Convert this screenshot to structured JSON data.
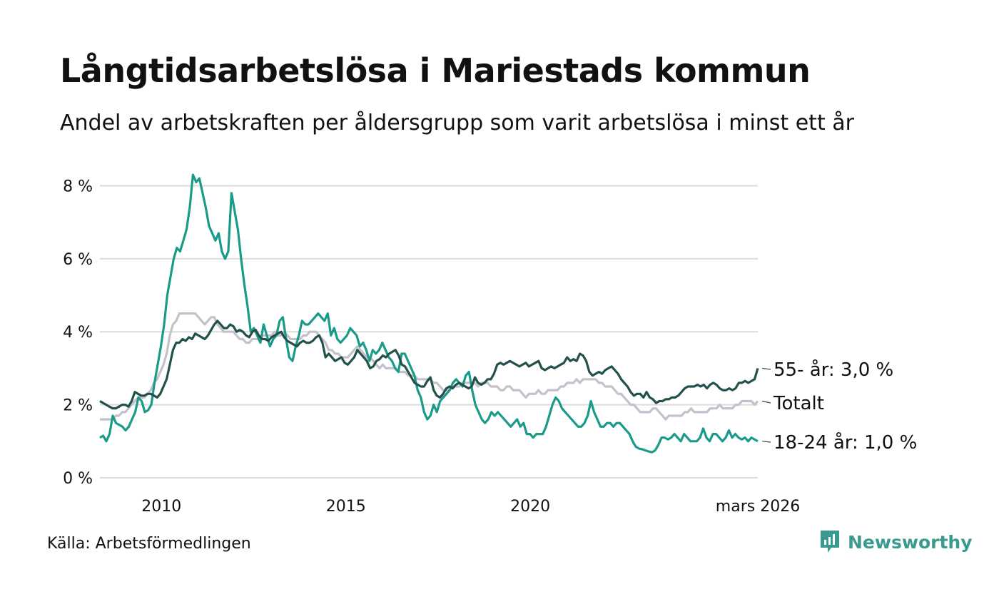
{
  "title": "Långtidsarbetslösa i Mariestads kommun",
  "subtitle": "Andel av arbetskraften per åldersgrupp som varit arbetslösa i minst ett år",
  "source": "Källa: Arbetsförmedlingen",
  "brand": "Newsworthy",
  "chart_data": {
    "type": "line",
    "x_start": 2008.33,
    "x_step": 0.0833,
    "xlim": [
      2008.33,
      2026.17
    ],
    "ylim": [
      0,
      8.4
    ],
    "y_ticks": [
      0,
      2,
      4,
      6,
      8
    ],
    "y_tick_labels": [
      "0 %",
      "2 %",
      "4 %",
      "6 %",
      "8 %"
    ],
    "x_ticks": [
      2010,
      2015,
      2020,
      2026.17
    ],
    "x_tick_labels": [
      "2010",
      "2015",
      "2020",
      "mars 2026"
    ],
    "grid": true,
    "series": [
      {
        "name": "Totalt",
        "label": "Totalt",
        "color": "#c4c0cc",
        "values": [
          1.6,
          1.6,
          1.6,
          1.6,
          1.6,
          1.7,
          1.7,
          1.8,
          1.8,
          1.9,
          2.0,
          2.1,
          2.2,
          2.2,
          2.2,
          2.3,
          2.4,
          2.6,
          2.7,
          2.9,
          3.1,
          3.4,
          3.9,
          4.2,
          4.3,
          4.5,
          4.5,
          4.5,
          4.5,
          4.5,
          4.5,
          4.4,
          4.3,
          4.2,
          4.3,
          4.4,
          4.4,
          4.2,
          4.1,
          4.0,
          4.0,
          4.0,
          4.0,
          3.9,
          3.8,
          3.8,
          3.7,
          3.7,
          3.8,
          3.8,
          3.8,
          3.9,
          3.9,
          3.9,
          3.9,
          4.0,
          3.9,
          3.9,
          4.0,
          3.9,
          3.8,
          3.8,
          3.8,
          3.8,
          3.9,
          3.9,
          4.0,
          4.0,
          4.0,
          3.9,
          3.8,
          3.7,
          3.5,
          3.5,
          3.4,
          3.4,
          3.3,
          3.3,
          3.3,
          3.4,
          3.5,
          3.6,
          3.5,
          3.4,
          3.3,
          3.3,
          3.2,
          3.1,
          3.0,
          3.1,
          3.0,
          3.0,
          3.0,
          3.0,
          2.9,
          2.9,
          2.9,
          2.8,
          2.8,
          2.8,
          2.7,
          2.7,
          2.7,
          2.7,
          2.7,
          2.6,
          2.6,
          2.5,
          2.4,
          2.4,
          2.4,
          2.5,
          2.5,
          2.5,
          2.6,
          2.6,
          2.6,
          2.6,
          2.6,
          2.5,
          2.6,
          2.6,
          2.6,
          2.5,
          2.5,
          2.5,
          2.4,
          2.4,
          2.5,
          2.5,
          2.4,
          2.4,
          2.4,
          2.3,
          2.2,
          2.3,
          2.3,
          2.3,
          2.4,
          2.3,
          2.3,
          2.4,
          2.4,
          2.4,
          2.4,
          2.5,
          2.5,
          2.6,
          2.6,
          2.6,
          2.7,
          2.6,
          2.7,
          2.7,
          2.7,
          2.7,
          2.7,
          2.6,
          2.6,
          2.5,
          2.5,
          2.5,
          2.4,
          2.3,
          2.3,
          2.2,
          2.1,
          2.0,
          2.0,
          1.9,
          1.8,
          1.8,
          1.8,
          1.8,
          1.9,
          1.9,
          1.8,
          1.7,
          1.6,
          1.7,
          1.7,
          1.7,
          1.7,
          1.7,
          1.8,
          1.8,
          1.9,
          1.8,
          1.8,
          1.8,
          1.8,
          1.8,
          1.9,
          1.9,
          1.9,
          2.0,
          1.9,
          1.9,
          1.9,
          1.9,
          2.0,
          2.0,
          2.1,
          2.1,
          2.1,
          2.1,
          2.0,
          2.1
        ]
      },
      {
        "name": "18-24 år",
        "label": "18-24 år: 1,0 %",
        "color": "#1a9a89",
        "values": [
          1.1,
          1.15,
          1.0,
          1.2,
          1.7,
          1.5,
          1.45,
          1.4,
          1.3,
          1.4,
          1.6,
          1.8,
          2.2,
          2.1,
          1.8,
          1.85,
          2.0,
          2.6,
          3.1,
          3.6,
          4.2,
          5.0,
          5.5,
          6.0,
          6.3,
          6.2,
          6.5,
          6.8,
          7.4,
          8.3,
          8.1,
          8.2,
          7.8,
          7.4,
          6.9,
          6.7,
          6.5,
          6.7,
          6.2,
          6.0,
          6.2,
          7.8,
          7.3,
          6.8,
          6.0,
          5.3,
          4.7,
          4.0,
          4.1,
          3.9,
          3.7,
          4.2,
          3.9,
          3.6,
          3.8,
          3.9,
          4.3,
          4.4,
          3.8,
          3.3,
          3.2,
          3.6,
          3.9,
          4.3,
          4.2,
          4.2,
          4.3,
          4.4,
          4.5,
          4.4,
          4.3,
          4.5,
          3.9,
          4.1,
          3.8,
          3.7,
          3.8,
          3.9,
          4.1,
          4.0,
          3.9,
          3.6,
          3.7,
          3.5,
          3.2,
          3.5,
          3.4,
          3.5,
          3.7,
          3.5,
          3.3,
          3.2,
          3.0,
          2.9,
          3.4,
          3.4,
          3.2,
          3.0,
          2.8,
          2.4,
          2.2,
          1.8,
          1.6,
          1.7,
          2.0,
          1.8,
          2.1,
          2.2,
          2.3,
          2.4,
          2.6,
          2.7,
          2.6,
          2.5,
          2.8,
          2.9,
          2.4,
          2.0,
          1.8,
          1.6,
          1.5,
          1.6,
          1.8,
          1.7,
          1.8,
          1.7,
          1.6,
          1.5,
          1.4,
          1.5,
          1.6,
          1.4,
          1.5,
          1.2,
          1.2,
          1.1,
          1.2,
          1.2,
          1.2,
          1.4,
          1.7,
          2.0,
          2.2,
          2.1,
          1.9,
          1.8,
          1.7,
          1.6,
          1.5,
          1.4,
          1.4,
          1.5,
          1.7,
          2.1,
          1.8,
          1.6,
          1.4,
          1.4,
          1.5,
          1.5,
          1.4,
          1.5,
          1.5,
          1.4,
          1.3,
          1.2,
          1.0,
          0.85,
          0.8,
          0.78,
          0.75,
          0.72,
          0.7,
          0.75,
          0.9,
          1.1,
          1.1,
          1.05,
          1.1,
          1.2,
          1.1,
          1.0,
          1.2,
          1.1,
          1.0,
          1.0,
          1.0,
          1.1,
          1.35,
          1.1,
          1.0,
          1.2,
          1.2,
          1.1,
          1.0,
          1.1,
          1.3,
          1.1,
          1.2,
          1.1,
          1.05,
          1.1,
          1.0,
          1.1,
          1.05,
          1.0
        ]
      },
      {
        "name": "55- år",
        "label": "55- år: 3,0 %",
        "color": "#22504a",
        "values": [
          2.1,
          2.05,
          2.0,
          1.95,
          1.9,
          1.9,
          1.95,
          2.0,
          2.0,
          1.95,
          2.1,
          2.35,
          2.3,
          2.25,
          2.25,
          2.3,
          2.3,
          2.25,
          2.2,
          2.3,
          2.5,
          2.7,
          3.1,
          3.5,
          3.7,
          3.7,
          3.8,
          3.75,
          3.85,
          3.8,
          3.95,
          3.9,
          3.85,
          3.8,
          3.9,
          4.05,
          4.2,
          4.3,
          4.2,
          4.1,
          4.1,
          4.2,
          4.15,
          4.0,
          4.05,
          4.0,
          3.9,
          3.85,
          4.0,
          4.05,
          3.9,
          3.8,
          3.8,
          3.75,
          3.85,
          3.9,
          3.95,
          4.0,
          3.85,
          3.75,
          3.7,
          3.65,
          3.6,
          3.7,
          3.75,
          3.7,
          3.7,
          3.75,
          3.85,
          3.9,
          3.7,
          3.3,
          3.4,
          3.3,
          3.2,
          3.25,
          3.3,
          3.15,
          3.1,
          3.2,
          3.3,
          3.5,
          3.4,
          3.3,
          3.2,
          3.0,
          3.05,
          3.2,
          3.25,
          3.35,
          3.3,
          3.4,
          3.45,
          3.5,
          3.35,
          3.1,
          3.05,
          2.9,
          2.75,
          2.6,
          2.55,
          2.5,
          2.5,
          2.65,
          2.75,
          2.4,
          2.25,
          2.2,
          2.3,
          2.45,
          2.5,
          2.45,
          2.55,
          2.6,
          2.55,
          2.5,
          2.45,
          2.5,
          2.75,
          2.6,
          2.55,
          2.6,
          2.7,
          2.7,
          2.85,
          3.1,
          3.15,
          3.1,
          3.15,
          3.2,
          3.15,
          3.1,
          3.05,
          3.1,
          3.15,
          3.05,
          3.1,
          3.15,
          3.2,
          3.0,
          2.95,
          3.0,
          3.05,
          3.0,
          3.05,
          3.1,
          3.15,
          3.3,
          3.2,
          3.25,
          3.2,
          3.4,
          3.35,
          3.2,
          2.9,
          2.8,
          2.85,
          2.9,
          2.85,
          2.95,
          3.0,
          3.05,
          2.95,
          2.85,
          2.7,
          2.6,
          2.5,
          2.35,
          2.25,
          2.3,
          2.3,
          2.2,
          2.35,
          2.2,
          2.15,
          2.05,
          2.1,
          2.1,
          2.15,
          2.15,
          2.2,
          2.2,
          2.25,
          2.35,
          2.45,
          2.5,
          2.5,
          2.5,
          2.55,
          2.5,
          2.55,
          2.45,
          2.55,
          2.6,
          2.55,
          2.45,
          2.4,
          2.4,
          2.45,
          2.4,
          2.45,
          2.6,
          2.6,
          2.65,
          2.6,
          2.65,
          2.7,
          3.0
        ]
      }
    ]
  }
}
